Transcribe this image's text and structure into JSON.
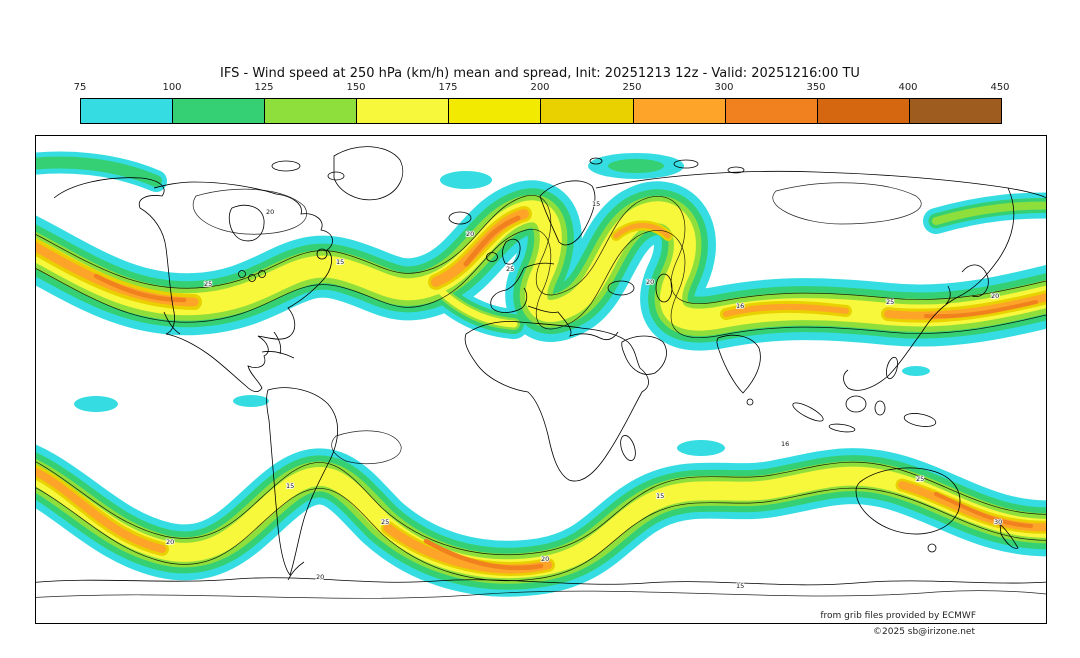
{
  "header": {
    "title": "IFS - Wind speed at 250 hPa (km/h) mean and spread, Init: 20251213 12z - Valid: 20251216:00 TU"
  },
  "colorbar": {
    "units": "km/h",
    "ticks": [
      "75",
      "100",
      "125",
      "150",
      "175",
      "200",
      "250",
      "300",
      "350",
      "400",
      "450"
    ],
    "segments": [
      {
        "range": "75-100",
        "color": "#35dde2"
      },
      {
        "range": "100-125",
        "color": "#35d073"
      },
      {
        "range": "125-150",
        "color": "#8fdf3c"
      },
      {
        "range": "150-175",
        "color": "#f7f73b"
      },
      {
        "range": "175-200",
        "color": "#f2ea00"
      },
      {
        "range": "200-250",
        "color": "#e9d100"
      },
      {
        "range": "250-300",
        "color": "#fda429"
      },
      {
        "range": "300-350",
        "color": "#f1801f"
      },
      {
        "range": "350-400",
        "color": "#d4670f"
      },
      {
        "range": "400-450",
        "color": "#9f5c1f"
      }
    ]
  },
  "map": {
    "contour_labels": [
      "25",
      "20",
      "15",
      "20",
      "25",
      "15",
      "20",
      "16",
      "25",
      "20",
      "20",
      "15",
      "25",
      "20",
      "15",
      "16",
      "25",
      "30",
      "15",
      "20"
    ],
    "credit_line1": "from grib files provided by ECMWF",
    "credit_line2": "©2025 sb@irizone.net"
  },
  "chart_data": {
    "type": "heatmap",
    "title": "IFS - Wind speed at 250 hPa (km/h) mean and spread, Init: 20251213 12z - Valid: 20251216:00 TU",
    "variable": "wind speed at 250 hPa",
    "units": "km/h",
    "scale_ticks": [
      75,
      100,
      125,
      150,
      175,
      200,
      250,
      300,
      350,
      400,
      450
    ],
    "scale_colors": [
      "#35dde2",
      "#35d073",
      "#8fdf3c",
      "#f7f73b",
      "#f2ea00",
      "#e9d100",
      "#fda429",
      "#f1801f",
      "#d4670f",
      "#9f5c1f"
    ],
    "spread_contour_values": [
      15,
      16,
      20,
      25,
      30
    ],
    "features": "Two wavy jet-stream bands (northern mid-latitudes and southern mid-latitudes) with cores exceeding 250-350 km/h over western North America, the North Atlantic, East Asia / NW Pacific, the South Atlantic / Indian Ocean and the South Pacific; tropics mostly below 75 km/h."
  }
}
